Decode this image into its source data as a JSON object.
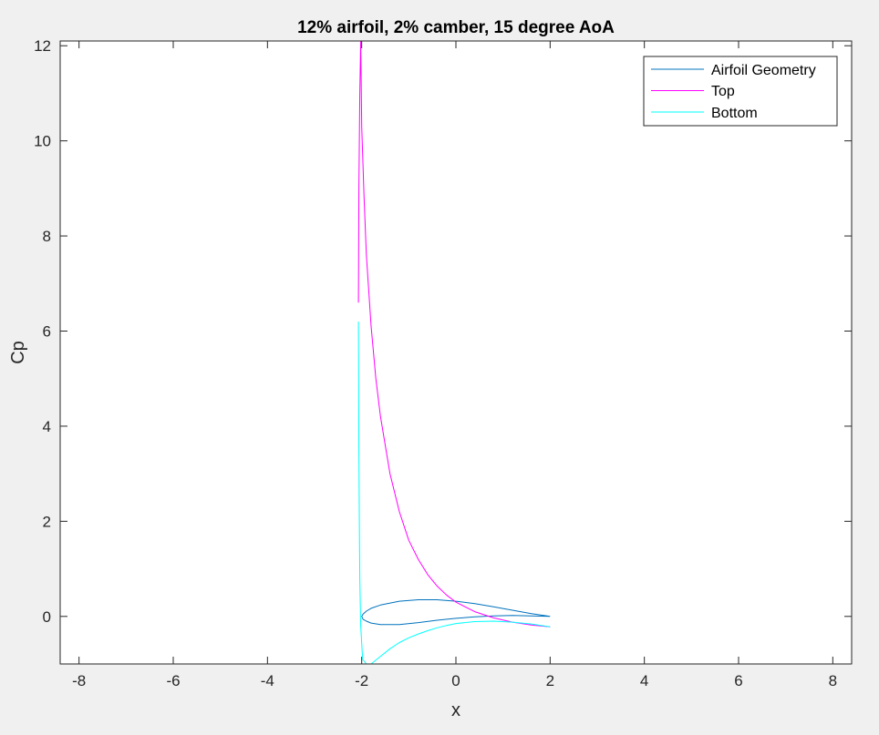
{
  "chart_data": {
    "type": "line",
    "title": "12% airfoil, 2% camber, 15 degree AoA",
    "xlabel": "x",
    "ylabel": "Cp",
    "xlim": [
      -8.4,
      8.4
    ],
    "ylim": [
      -1.0,
      12.1
    ],
    "xticks": [
      -8,
      -6,
      -4,
      -2,
      0,
      2,
      4,
      6,
      8
    ],
    "yticks": [
      0,
      2,
      4,
      6,
      8,
      10,
      12
    ],
    "legend_position": "top-right",
    "grid": false,
    "series": [
      {
        "name": "Airfoil Geometry",
        "color": "#0072bd",
        "x": [
          2.0,
          1.6,
          1.2,
          0.8,
          0.4,
          0.0,
          -0.4,
          -0.8,
          -1.2,
          -1.6,
          -1.8,
          -1.9,
          -1.97,
          -2.0,
          -1.97,
          -1.9,
          -1.8,
          -1.6,
          -1.2,
          -0.8,
          -0.4,
          0.0,
          0.4,
          0.8,
          1.2,
          1.6,
          2.0
        ],
        "y": [
          0.0,
          0.06,
          0.13,
          0.2,
          0.27,
          0.32,
          0.35,
          0.35,
          0.32,
          0.24,
          0.17,
          0.11,
          0.05,
          0.0,
          -0.06,
          -0.1,
          -0.14,
          -0.17,
          -0.17,
          -0.13,
          -0.08,
          -0.04,
          -0.01,
          0.01,
          0.02,
          0.01,
          0.0
        ]
      },
      {
        "name": "Top",
        "color": "#ff00ff",
        "x": [
          -2.07,
          -2.06,
          -2.04,
          -2.02,
          -2.0,
          -1.95,
          -1.9,
          -1.8,
          -1.7,
          -1.6,
          -1.4,
          -1.2,
          -1.0,
          -0.8,
          -0.6,
          -0.4,
          -0.2,
          0.0,
          0.4,
          0.8,
          1.2,
          1.6,
          2.0
        ],
        "y": [
          6.6,
          9.0,
          11.0,
          12.1,
          10.3,
          8.8,
          7.6,
          6.1,
          5.0,
          4.2,
          3.0,
          2.2,
          1.6,
          1.2,
          0.88,
          0.64,
          0.45,
          0.3,
          0.1,
          -0.03,
          -0.12,
          -0.18,
          -0.22
        ]
      },
      {
        "name": "Bottom",
        "color": "#00ffff",
        "x": [
          -2.07,
          -2.06,
          -2.05,
          -2.04,
          -2.02,
          -1.98,
          -1.9,
          -1.8,
          -1.6,
          -1.4,
          -1.2,
          -1.0,
          -0.8,
          -0.6,
          -0.4,
          -0.2,
          0.0,
          0.4,
          0.8,
          1.2,
          1.6,
          2.0
        ],
        "y": [
          6.2,
          3.5,
          2.0,
          0.8,
          -0.2,
          -0.9,
          -1.0,
          -1.0,
          -0.84,
          -0.68,
          -0.55,
          -0.45,
          -0.37,
          -0.3,
          -0.24,
          -0.19,
          -0.15,
          -0.11,
          -0.1,
          -0.12,
          -0.16,
          -0.22
        ]
      }
    ]
  }
}
